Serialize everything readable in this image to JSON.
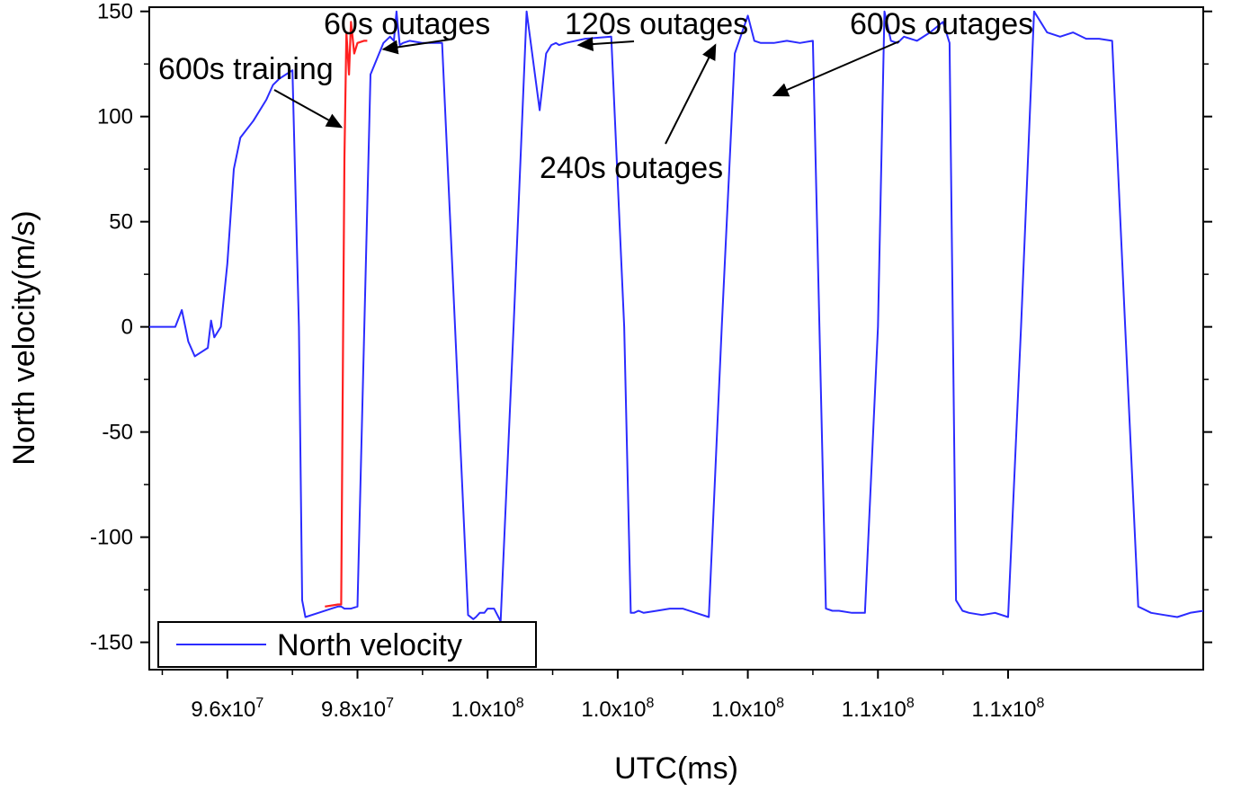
{
  "chart_data": {
    "type": "line",
    "title": "",
    "xlabel": "UTC(ms)",
    "ylabel": "North velocity(m/s)",
    "xlim": [
      94800000,
      111000000
    ],
    "ylim": [
      -163,
      152
    ],
    "x_ticks": [
      {
        "value": 96000000,
        "label": "9.6x10",
        "exp": "7"
      },
      {
        "value": 98000000,
        "label": "9.8x10",
        "exp": "7"
      },
      {
        "value": 100000000,
        "label": "1.0x10",
        "exp": "8"
      },
      {
        "value": 102000000,
        "label": "1.0x10",
        "exp": "8"
      },
      {
        "value": 104000000,
        "label": "1.0x10",
        "exp": "8"
      },
      {
        "value": 106000000,
        "label": "1.1x10",
        "exp": "8"
      },
      {
        "value": 108000000,
        "label": "1.1x10",
        "exp": "8"
      }
    ],
    "y_ticks": [
      {
        "value": 150,
        "label": "150"
      },
      {
        "value": 100,
        "label": "100"
      },
      {
        "value": 50,
        "label": "50"
      },
      {
        "value": 0,
        "label": "0"
      },
      {
        "value": -50,
        "label": "-50"
      },
      {
        "value": -100,
        "label": "-100"
      },
      {
        "value": -150,
        "label": "-150"
      }
    ],
    "legend": {
      "position": "bottom-left",
      "entries": [
        {
          "name": "North velocity",
          "color": "#2b2bff"
        }
      ]
    },
    "series": [
      {
        "name": "North velocity",
        "color": "#2b2bff",
        "x": [
          94800000,
          95000000,
          95100000,
          95200000,
          95300000,
          95400000,
          95500000,
          95600000,
          95700000,
          95750000,
          95800000,
          95900000,
          96000000,
          96100000,
          96200000,
          96400000,
          96600000,
          96700000,
          96800000,
          96900000,
          97000000,
          97100000,
          97150000,
          97200000,
          97400000,
          97600000,
          97700000,
          97750000,
          97800000,
          97900000,
          98000000,
          98200000,
          98400000,
          98500000,
          98560000,
          98600000,
          98650000,
          98700000,
          98800000,
          99000000,
          99300000,
          99500000,
          99700000,
          99780000,
          99820000,
          99880000,
          99950000,
          100000000,
          100100000,
          100200000,
          100400000,
          100600000,
          100800000,
          100900000,
          100980000,
          101050000,
          101100000,
          101200000,
          101500000,
          101900000,
          102100000,
          102200000,
          102250000,
          102320000,
          102400000,
          102600000,
          102800000,
          103000000,
          103200000,
          103400000,
          103600000,
          103800000,
          104000000,
          104100000,
          104200000,
          104300000,
          104400000,
          104600000,
          104800000,
          105000000,
          105100000,
          105200000,
          105300000,
          105400000,
          105600000,
          105800000,
          106000000,
          106100000,
          106200000,
          106300000,
          106400000,
          106600000,
          106800000,
          107000000,
          107100000,
          107200000,
          107300000,
          107400000,
          107600000,
          107800000,
          108000000,
          108200000,
          108400000,
          108600000,
          108800000,
          109000000,
          109200000,
          109400000,
          109600000,
          109800000,
          110000000,
          110200000,
          110400000,
          110600000,
          110800000,
          111000000
        ],
        "y": [
          0,
          0,
          0,
          0,
          8,
          -7,
          -14,
          -12,
          -10,
          3,
          -5,
          0,
          30,
          75,
          90,
          98,
          108,
          115,
          118,
          120,
          122,
          0,
          -130,
          -138,
          -136,
          -134,
          -133,
          -133,
          -134,
          -134,
          -133,
          120,
          135,
          138,
          136,
          150,
          134,
          135,
          136,
          135,
          135,
          0,
          -137,
          -139,
          -138,
          -136,
          -136,
          -134,
          -134,
          -140,
          0,
          150,
          103,
          130,
          134,
          135,
          134,
          135,
          137,
          138,
          0,
          -136,
          -136,
          -135,
          -136,
          -135,
          -134,
          -134,
          -136,
          -138,
          0,
          130,
          148,
          136,
          135,
          135,
          135,
          136,
          135,
          136,
          0,
          -134,
          -135,
          -135,
          -136,
          -136,
          0,
          150,
          136,
          135,
          138,
          136,
          140,
          145,
          135,
          -130,
          -135,
          -136,
          -137,
          -136,
          -138,
          0,
          150,
          140,
          138,
          140,
          137,
          137,
          136,
          0,
          -133,
          -136,
          -137,
          -138,
          -136,
          -135
        ]
      }
    ],
    "highlight_segments": [
      {
        "name": "outage",
        "color": "#ff2020",
        "x": [
          97500000,
          97700000,
          97750000,
          97780000,
          97800000,
          97830000,
          97870000,
          97900000,
          97950000,
          98000000,
          98100000,
          98150000
        ],
        "y": [
          -133,
          -132,
          -132,
          0,
          80,
          140,
          120,
          145,
          130,
          135,
          136,
          136
        ]
      }
    ],
    "annotations": [
      {
        "text": "600s training",
        "target": [
          97750000,
          95
        ]
      },
      {
        "text": "60s outages",
        "target": [
          98400000,
          132
        ]
      },
      {
        "text": "120s outages",
        "target": [
          101400000,
          134
        ]
      },
      {
        "text": "240s outages",
        "target": [
          103500000,
          134
        ]
      },
      {
        "text": "600s outages",
        "target": [
          104400000,
          110
        ]
      }
    ]
  }
}
